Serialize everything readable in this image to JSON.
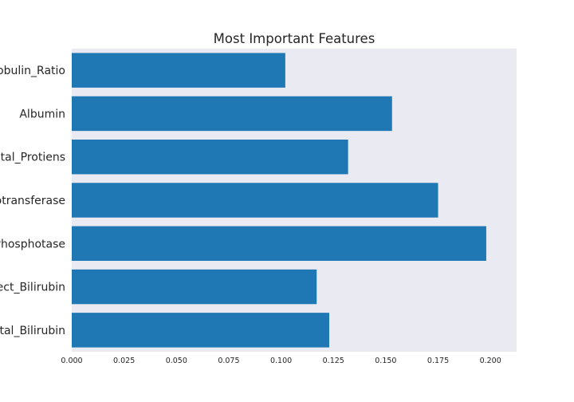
{
  "chart_data": {
    "type": "bar",
    "orientation": "horizontal",
    "title": "Most Important Features",
    "xlabel": "",
    "ylabel": "",
    "categories": [
      "Total_Bilirubin",
      "Direct_Bilirubin",
      "Alkaline_Phosphotase",
      "Aspartate_Aminotransferase",
      "Total_Protiens",
      "Albumin",
      "Albumin_and_Globulin_Ratio"
    ],
    "category_labels_visible": [
      "otal_Bilirubin",
      "ect_Bilirubin",
      "Phosphotase",
      "otransferase",
      "otal_Protiens",
      "Albumin",
      "obulin_Ratio"
    ],
    "values": [
      0.123,
      0.117,
      0.198,
      0.175,
      0.132,
      0.153,
      0.102
    ],
    "xlim": [
      0,
      0.2125
    ],
    "xticks": [
      0.0,
      0.025,
      0.05,
      0.075,
      0.1,
      0.125,
      0.15,
      0.175,
      0.2
    ],
    "xtick_labels": [
      "0.000",
      "0.025",
      "0.050",
      "0.075",
      "0.100",
      "0.125",
      "0.150",
      "0.175",
      "0.200"
    ],
    "grid": false,
    "colors": {
      "bar": "#1f77b4",
      "plot_background": "#eaeaf2"
    }
  }
}
